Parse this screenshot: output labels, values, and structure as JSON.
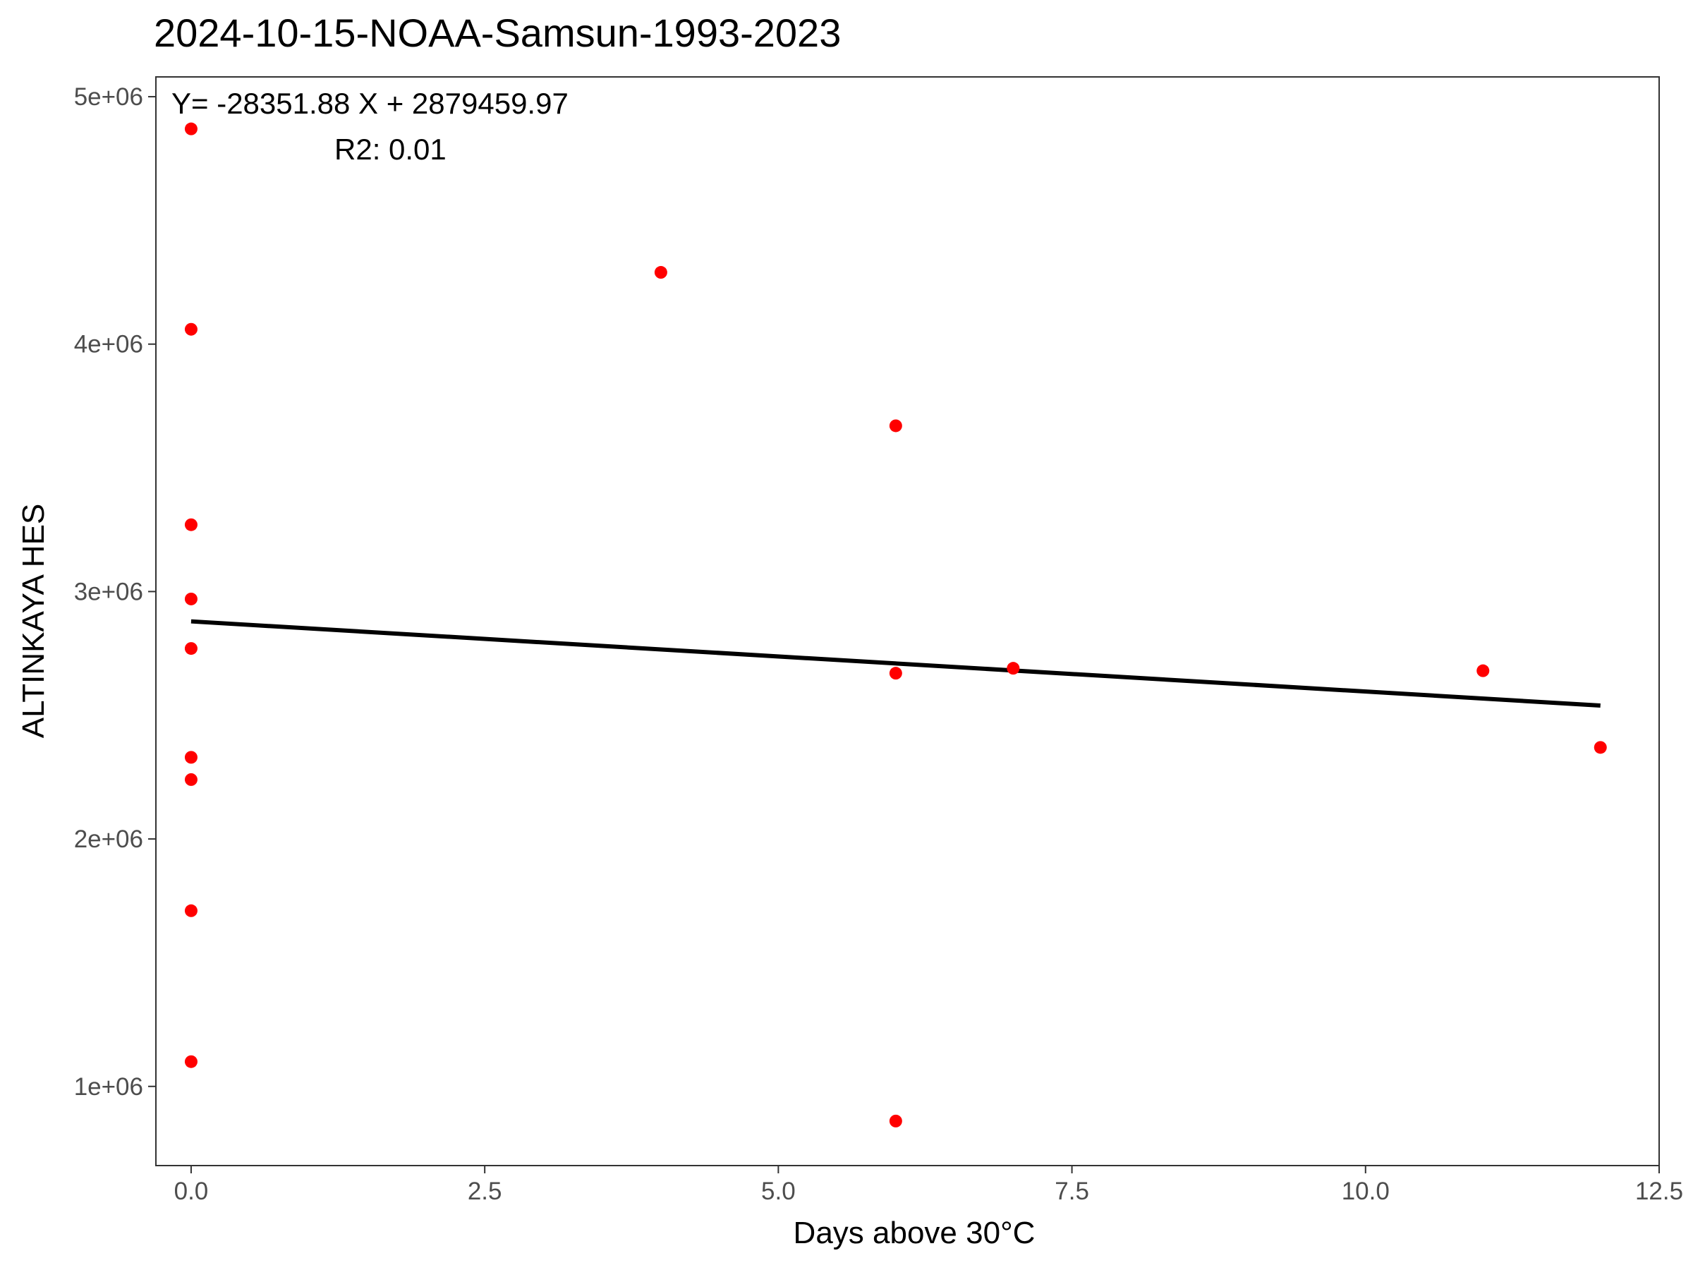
{
  "chart_data": {
    "type": "scatter",
    "title": "2024-10-15-NOAA-Samsun-1993-2023",
    "xlabel": "Days above 30°C",
    "ylabel": "ALTINKAYA HES",
    "xlim": [
      -0.3,
      12.5
    ],
    "ylim": [
      680000,
      5080000
    ],
    "x_ticks": [
      0.0,
      2.5,
      5.0,
      7.5,
      10.0,
      12.5
    ],
    "x_tick_labels": [
      "0.0",
      "2.5",
      "5.0",
      "7.5",
      "10.0",
      "12.5"
    ],
    "y_ticks": [
      1000000,
      2000000,
      3000000,
      4000000,
      5000000
    ],
    "y_tick_labels": [
      "1e+06",
      "2e+06",
      "3e+06",
      "4e+06",
      "5e+06"
    ],
    "grid": false,
    "point_color": "#ff0000",
    "line_color": "#000000",
    "points": [
      {
        "x": 0,
        "y": 4870000
      },
      {
        "x": 0,
        "y": 4060000
      },
      {
        "x": 0,
        "y": 3270000
      },
      {
        "x": 0,
        "y": 2970000
      },
      {
        "x": 0,
        "y": 2770000
      },
      {
        "x": 0,
        "y": 2330000
      },
      {
        "x": 0,
        "y": 2240000
      },
      {
        "x": 0,
        "y": 1710000
      },
      {
        "x": 0,
        "y": 1100000
      },
      {
        "x": 4,
        "y": 4290000
      },
      {
        "x": 6,
        "y": 3670000
      },
      {
        "x": 6,
        "y": 2670000
      },
      {
        "x": 6,
        "y": 860000
      },
      {
        "x": 7,
        "y": 2690000
      },
      {
        "x": 11,
        "y": 2680000
      },
      {
        "x": 12,
        "y": 2370000
      }
    ],
    "regression": {
      "slope": -28351.88,
      "intercept": 2879459.97,
      "x_range": [
        0,
        12
      ]
    },
    "annotations": {
      "equation": "Y= -28351.88 X + 2879459.97",
      "r2": "R2: 0.01"
    }
  }
}
